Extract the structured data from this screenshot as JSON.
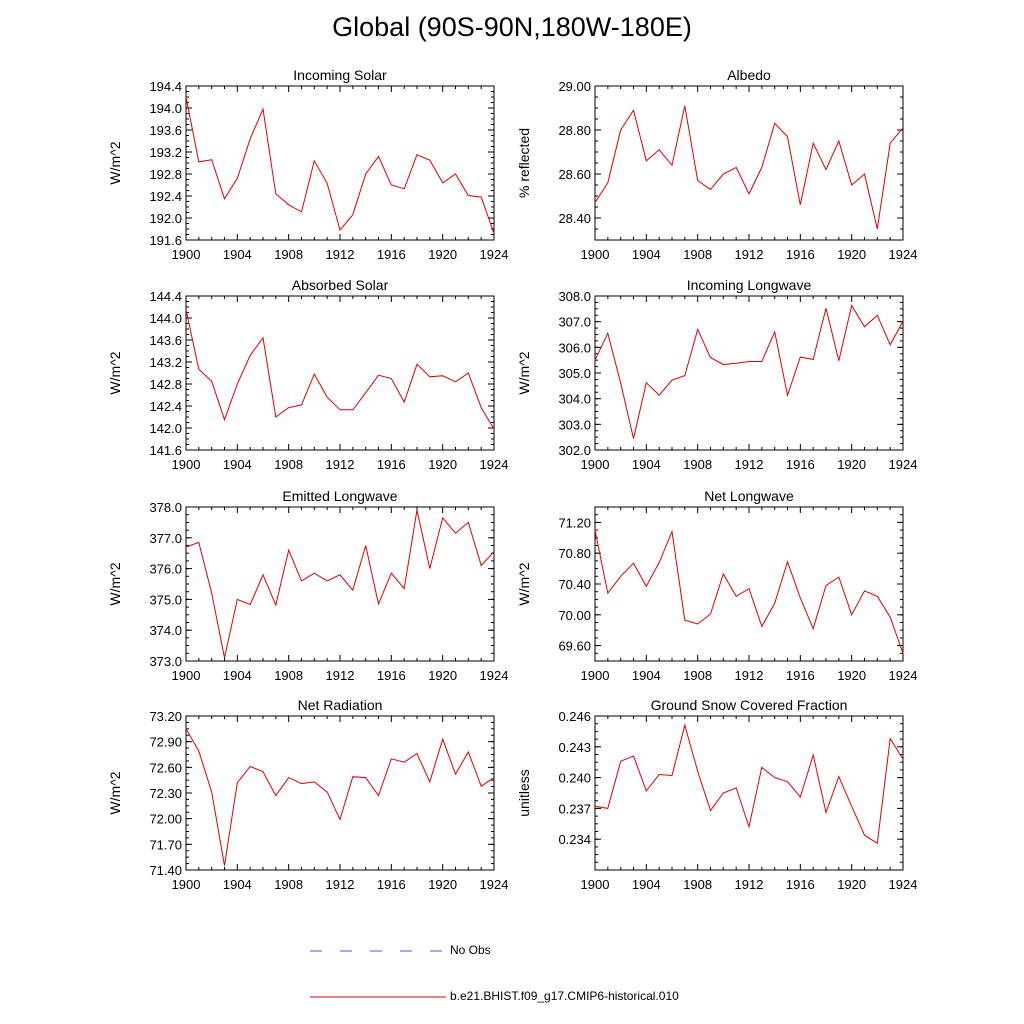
{
  "page": {
    "title": "Global (90S-90N,180W-180E)"
  },
  "legend": {
    "items": [
      {
        "label": "No Obs",
        "color": "#4b5bd1",
        "style": "dashed"
      },
      {
        "label": "b.e21.BHIST.f09_g17.CMIP6-historical.010",
        "color": "#e00000",
        "style": "solid"
      }
    ]
  },
  "chart_data": [
    {
      "type": "line",
      "title": "Incoming Solar",
      "ylabel": "W/m^2",
      "xlim": [
        1900,
        1924
      ],
      "ylim": [
        191.6,
        194.4
      ],
      "xticks": [
        1900,
        1904,
        1908,
        1912,
        1916,
        1920,
        1924
      ],
      "yticks": [
        191.6,
        192.0,
        192.4,
        192.8,
        193.2,
        193.6,
        194.0,
        194.4
      ],
      "ytick_decimals": 1,
      "series": [
        {
          "color": "#e00000",
          "x": [
            1900,
            1901,
            1902,
            1903,
            1904,
            1905,
            1906,
            1907,
            1908,
            1909,
            1910,
            1911,
            1912,
            1913,
            1914,
            1915,
            1916,
            1917,
            1918,
            1919,
            1920,
            1921,
            1922,
            1923,
            1924
          ],
          "y": [
            194.2,
            193.02,
            193.06,
            192.35,
            192.72,
            193.44,
            193.98,
            192.44,
            192.24,
            192.11,
            193.04,
            192.63,
            191.78,
            192.06,
            192.8,
            193.12,
            192.6,
            192.53,
            193.15,
            193.05,
            192.64,
            192.8,
            192.41,
            192.38,
            191.72
          ]
        }
      ]
    },
    {
      "type": "line",
      "title": "Albedo",
      "ylabel": "% reflected",
      "xlim": [
        1900,
        1924
      ],
      "ylim": [
        28.3,
        29.0
      ],
      "xticks": [
        1900,
        1904,
        1908,
        1912,
        1916,
        1920,
        1924
      ],
      "yticks": [
        28.4,
        28.6,
        28.8,
        29.0
      ],
      "ytick_decimals": 2,
      "series": [
        {
          "color": "#e00000",
          "x": [
            1900,
            1901,
            1902,
            1903,
            1904,
            1905,
            1906,
            1907,
            1908,
            1909,
            1910,
            1911,
            1912,
            1913,
            1914,
            1915,
            1916,
            1917,
            1918,
            1919,
            1920,
            1921,
            1922,
            1923,
            1924
          ],
          "y": [
            28.47,
            28.56,
            28.8,
            28.89,
            28.66,
            28.71,
            28.64,
            28.91,
            28.57,
            28.53,
            28.6,
            28.63,
            28.51,
            28.63,
            28.83,
            28.77,
            28.46,
            28.74,
            28.62,
            28.75,
            28.55,
            28.6,
            28.35,
            28.74,
            28.81
          ]
        }
      ]
    },
    {
      "type": "line",
      "title": "Absorbed Solar",
      "ylabel": "W/m^2",
      "xlim": [
        1900,
        1924
      ],
      "ylim": [
        141.6,
        144.4
      ],
      "xticks": [
        1900,
        1904,
        1908,
        1912,
        1916,
        1920,
        1924
      ],
      "yticks": [
        141.6,
        142.0,
        142.4,
        142.8,
        143.2,
        143.6,
        144.0,
        144.4
      ],
      "ytick_decimals": 1,
      "series": [
        {
          "color": "#e00000",
          "x": [
            1900,
            1901,
            1902,
            1903,
            1904,
            1905,
            1906,
            1907,
            1908,
            1909,
            1910,
            1911,
            1912,
            1913,
            1914,
            1915,
            1916,
            1917,
            1918,
            1919,
            1920,
            1921,
            1922,
            1923,
            1924
          ],
          "y": [
            144.15,
            143.07,
            142.85,
            142.15,
            142.8,
            143.32,
            143.64,
            142.2,
            142.37,
            142.42,
            142.98,
            142.56,
            142.33,
            142.33,
            142.64,
            142.96,
            142.9,
            142.47,
            143.16,
            142.93,
            142.95,
            142.84,
            143.0,
            142.37,
            141.98
          ]
        }
      ]
    },
    {
      "type": "line",
      "title": "Incoming Longwave",
      "ylabel": "W/m^2",
      "xlim": [
        1900,
        1924
      ],
      "ylim": [
        302.0,
        308.0
      ],
      "xticks": [
        1900,
        1904,
        1908,
        1912,
        1916,
        1920,
        1924
      ],
      "yticks": [
        302.0,
        303.0,
        304.0,
        305.0,
        306.0,
        307.0,
        308.0
      ],
      "ytick_decimals": 1,
      "series": [
        {
          "color": "#e00000",
          "x": [
            1900,
            1901,
            1902,
            1903,
            1904,
            1905,
            1906,
            1907,
            1908,
            1909,
            1910,
            1911,
            1912,
            1913,
            1914,
            1915,
            1916,
            1917,
            1918,
            1919,
            1920,
            1921,
            1922,
            1923,
            1924
          ],
          "y": [
            305.5,
            306.55,
            304.6,
            302.45,
            304.62,
            304.14,
            304.72,
            304.9,
            306.7,
            305.6,
            305.33,
            305.38,
            305.45,
            305.45,
            306.6,
            304.13,
            305.62,
            305.53,
            307.52,
            305.48,
            307.63,
            306.8,
            307.25,
            306.1,
            307.02
          ]
        }
      ]
    },
    {
      "type": "line",
      "title": "Emitted Longwave",
      "ylabel": "W/m^2",
      "xlim": [
        1900,
        1924
      ],
      "ylim": [
        373.0,
        378.0
      ],
      "xticks": [
        1900,
        1904,
        1908,
        1912,
        1916,
        1920,
        1924
      ],
      "yticks": [
        373.0,
        374.0,
        375.0,
        376.0,
        377.0,
        378.0
      ],
      "ytick_decimals": 1,
      "series": [
        {
          "color": "#e00000",
          "x": [
            1900,
            1901,
            1902,
            1903,
            1904,
            1905,
            1906,
            1907,
            1908,
            1909,
            1910,
            1911,
            1912,
            1913,
            1914,
            1915,
            1916,
            1917,
            1918,
            1919,
            1920,
            1921,
            1922,
            1923,
            1924
          ],
          "y": [
            376.7,
            376.85,
            375.2,
            373.1,
            375.0,
            374.83,
            375.8,
            374.82,
            376.6,
            375.6,
            375.85,
            375.6,
            375.8,
            375.3,
            376.75,
            374.85,
            375.85,
            375.35,
            377.9,
            376.0,
            377.65,
            377.15,
            377.5,
            376.1,
            376.55
          ]
        }
      ]
    },
    {
      "type": "line",
      "title": "Net Longwave",
      "ylabel": "W/m^2",
      "xlim": [
        1900,
        1924
      ],
      "ylim": [
        69.4,
        71.4
      ],
      "xticks": [
        1900,
        1904,
        1908,
        1912,
        1916,
        1920,
        1924
      ],
      "yticks": [
        69.6,
        70.0,
        70.4,
        70.8,
        71.2
      ],
      "ytick_decimals": 2,
      "series": [
        {
          "color": "#e00000",
          "x": [
            1900,
            1901,
            1902,
            1903,
            1904,
            1905,
            1906,
            1907,
            1908,
            1909,
            1910,
            1911,
            1912,
            1913,
            1914,
            1915,
            1916,
            1917,
            1918,
            1919,
            1920,
            1921,
            1922,
            1923,
            1924
          ],
          "y": [
            71.1,
            70.28,
            70.5,
            70.67,
            70.37,
            70.68,
            71.08,
            69.93,
            69.88,
            70.01,
            70.53,
            70.24,
            70.34,
            69.85,
            70.15,
            70.69,
            70.22,
            69.82,
            70.38,
            70.49,
            70.0,
            70.31,
            70.24,
            69.97,
            69.5
          ]
        }
      ]
    },
    {
      "type": "line",
      "title": "Net Radiation",
      "ylabel": "W/m^2",
      "xlim": [
        1900,
        1924
      ],
      "ylim": [
        71.4,
        73.2
      ],
      "xticks": [
        1900,
        1904,
        1908,
        1912,
        1916,
        1920,
        1924
      ],
      "yticks": [
        71.4,
        71.7,
        72.0,
        72.3,
        72.6,
        72.9,
        73.2
      ],
      "ytick_decimals": 2,
      "series": [
        {
          "color": "#e00000",
          "x": [
            1900,
            1901,
            1902,
            1903,
            1904,
            1905,
            1906,
            1907,
            1908,
            1909,
            1910,
            1911,
            1912,
            1913,
            1914,
            1915,
            1916,
            1917,
            1918,
            1919,
            1920,
            1921,
            1922,
            1923,
            1924
          ],
          "y": [
            73.05,
            72.79,
            72.31,
            71.45,
            72.42,
            72.61,
            72.55,
            72.27,
            72.48,
            72.41,
            72.43,
            72.31,
            71.99,
            72.49,
            72.48,
            72.27,
            72.7,
            72.66,
            72.76,
            72.43,
            72.93,
            72.52,
            72.78,
            72.38,
            72.48
          ]
        }
      ]
    },
    {
      "type": "line",
      "title": "Ground Snow Covered Fraction",
      "ylabel": "unitless",
      "xlim": [
        1900,
        1924
      ],
      "ylim": [
        0.231,
        0.246
      ],
      "xticks": [
        1900,
        1904,
        1908,
        1912,
        1916,
        1920,
        1924
      ],
      "yticks": [
        0.234,
        0.237,
        0.24,
        0.243,
        0.246
      ],
      "ytick_decimals": 3,
      "series": [
        {
          "color": "#e00000",
          "x": [
            1900,
            1901,
            1902,
            1903,
            1904,
            1905,
            1906,
            1907,
            1908,
            1909,
            1910,
            1911,
            1912,
            1913,
            1914,
            1915,
            1916,
            1917,
            1918,
            1919,
            1920,
            1921,
            1922,
            1923,
            1924
          ],
          "y": [
            0.2372,
            0.237,
            0.2416,
            0.2421,
            0.2387,
            0.2403,
            0.2402,
            0.2451,
            0.2406,
            0.2368,
            0.2385,
            0.239,
            0.2352,
            0.241,
            0.24,
            0.2396,
            0.2381,
            0.2422,
            0.2366,
            0.2401,
            0.2372,
            0.2344,
            0.2336,
            0.2438,
            0.2418
          ]
        }
      ]
    }
  ]
}
